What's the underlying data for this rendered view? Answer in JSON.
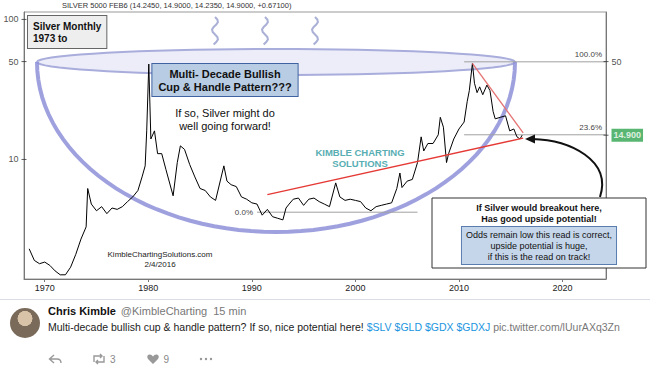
{
  "chart_data": {
    "type": "line",
    "header": "SILVER 5000 FEB6 (14.2450, 14.9000, 14.2350, 14.9000, +0.67100)",
    "title": [
      "Silver Monthly",
      "1973 to"
    ],
    "annotations": {
      "pattern_title": [
        "Multi- Decade Bullish",
        "Cup & Handle Pattern???"
      ],
      "pattern_note": [
        "If so, Silver might do",
        "well going forward!"
      ],
      "breakout_note": [
        "If Silver would breakout here,",
        "Has good upside potential!"
      ],
      "odds_note": [
        "Odds remain low this read is correct,",
        "upside potential is huge,",
        "if this is the read on track!"
      ],
      "watermark": [
        "KIMBLE CHARTING",
        "SOLUTIONS"
      ],
      "source": [
        "KimbleChartingSolutions.com",
        "2/4/2016"
      ]
    },
    "x": [
      1968.5,
      1969,
      1969.5,
      1970,
      1970.5,
      1971,
      1971.5,
      1972,
      1972.5,
      1973,
      1973.5,
      1974,
      1974.15,
      1974.5,
      1975,
      1975.5,
      1976,
      1976.5,
      1977,
      1977.5,
      1978,
      1978.5,
      1979,
      1979.4,
      1979.7,
      1979.85,
      1980.05,
      1980.25,
      1980.6,
      1980.9,
      1981.3,
      1981.7,
      1982.4,
      1982.8,
      1983.1,
      1983.5,
      1984,
      1984.5,
      1985,
      1985.5,
      1986,
      1986.5,
      1987.3,
      1987.6,
      1988,
      1988.5,
      1989,
      1989.5,
      1990,
      1990.5,
      1991,
      1991.5,
      1992,
      1992.5,
      1993,
      1993.3,
      1993.6,
      1994,
      1994.5,
      1995,
      1995.5,
      1996,
      1996.5,
      1997,
      1997.5,
      1998.1,
      1998.5,
      1999,
      1999.5,
      2000,
      2000.5,
      2001,
      2001.5,
      2002,
      2002.5,
      2003,
      2003.5,
      2004,
      2004.3,
      2004.5,
      2005,
      2005.5,
      2006,
      2006.35,
      2006.6,
      2007,
      2007.5,
      2008,
      2008.2,
      2008.5,
      2008.8,
      2009,
      2009.5,
      2010,
      2010.5,
      2010.8,
      2011,
      2011.3,
      2011.5,
      2011.75,
      2012,
      2012.3,
      2012.7,
      2013,
      2013.3,
      2013.5,
      2014,
      2014.5,
      2014.9,
      2015.3,
      2015.6,
      2015.9,
      2016.1
    ],
    "values": [
      2.3,
      1.9,
      1.8,
      1.85,
      1.75,
      1.6,
      1.5,
      1.5,
      1.7,
      2.1,
      2.7,
      3.3,
      6.2,
      4.8,
      4.3,
      4.6,
      4.1,
      4.5,
      4.4,
      4.6,
      5.0,
      5.4,
      6.0,
      7.5,
      9.0,
      16,
      48,
      14,
      16,
      11,
      11,
      8.5,
      5.5,
      9.5,
      12.5,
      11.8,
      9.2,
      7.5,
      6.2,
      6.0,
      5.4,
      5.1,
      9.0,
      7.0,
      6.6,
      6.4,
      5.4,
      5.2,
      4.9,
      4.8,
      4.0,
      4.4,
      3.9,
      3.8,
      3.7,
      4.5,
      4.8,
      5.2,
      5.3,
      4.7,
      5.2,
      5.3,
      5.0,
      4.8,
      4.6,
      6.8,
      5.4,
      5.1,
      5.2,
      5.1,
      5.0,
      4.5,
      4.3,
      4.6,
      4.7,
      4.8,
      4.9,
      6.2,
      8.0,
      6.3,
      7.0,
      7.2,
      9.5,
      14.5,
      11.5,
      13.0,
      13.0,
      15.0,
      20.0,
      17.0,
      9.5,
      11.0,
      14.0,
      16.5,
      18.5,
      26.0,
      31.0,
      48.5,
      35.0,
      30.0,
      33.0,
      29.0,
      34.0,
      31.0,
      22.0,
      19.5,
      20.0,
      20.5,
      16.0,
      16.5,
      14.5,
      14.0,
      14.9
    ],
    "color": "#000000",
    "xlim": [
      1968,
      2024.2
    ],
    "xticks": [
      1970,
      1980,
      1990,
      2000,
      2010,
      2020
    ],
    "ylim": [
      1.4,
      113
    ],
    "yticks": [
      10,
      50,
      100
    ],
    "y2lim": [
      1.4,
      113
    ],
    "y2ticks": [
      {
        "value": 14.9,
        "label": "14.900"
      },
      50
    ],
    "log": "y",
    "grid": false,
    "fib_levels": [
      {
        "label": "100.0%",
        "value": 49.8,
        "from": 2010.5,
        "to": 2024.2
      },
      {
        "label": "23.6%",
        "value": 15.0,
        "from": 2010.5,
        "to": 2024.2
      },
      {
        "label": "0.0%",
        "value": 4.2,
        "from": 1990.5,
        "to": 2006
      }
    ],
    "trendlines": [
      {
        "color": "#e53935",
        "points": [
          [
            1991.5,
            5.6
          ],
          [
            2016.2,
            14.2
          ]
        ]
      },
      {
        "color": "#e57373",
        "points": [
          [
            2011.3,
            48.5
          ],
          [
            2016.2,
            15.5
          ]
        ]
      }
    ]
  },
  "tweet": {
    "name": "Chris Kimble",
    "handle": "@KimbleCharting",
    "time": "15 min",
    "text": "Multi-decade bullish cup & handle pattern? If so, nice potential here!",
    "tags": [
      "$SLV",
      "$GLD",
      "$GDX",
      "$GDXJ"
    ],
    "link": "pic.twitter.com/lUurAXq3Zn",
    "retweets": 3,
    "likes": 9
  }
}
